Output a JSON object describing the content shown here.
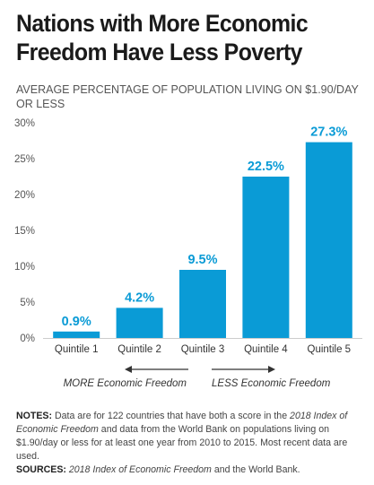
{
  "title": "Nations with More Economic Freedom Have Less Poverty",
  "chart_data": {
    "type": "bar",
    "title": "Nations with More Economic Freedom Have Less Poverty",
    "subtitle": "AVERAGE PERCENTAGE OF POPULATION LIVING ON $1.90/DAY OR LESS",
    "categories": [
      "Quintile 1",
      "Quintile 2",
      "Quintile 3",
      "Quintile 4",
      "Quintile 5"
    ],
    "values": [
      0.9,
      4.2,
      9.5,
      22.5,
      27.3
    ],
    "value_labels": [
      "0.9%",
      "4.2%",
      "9.5%",
      "22.5%",
      "27.3%"
    ],
    "ylim": [
      0,
      30
    ],
    "yticks": [
      0,
      5,
      10,
      15,
      20,
      25,
      30
    ],
    "ytick_labels": [
      "0%",
      "5%",
      "10%",
      "15%",
      "20%",
      "25%",
      "30%"
    ],
    "xlabel": "",
    "ylabel": "",
    "grid": false,
    "bar_color": "#0a9bd6",
    "label_color": "#0a9bd6",
    "annotations": {
      "left_arrow": "MORE Economic Freedom",
      "right_arrow": "LESS Economic Freedom"
    }
  },
  "notes": {
    "notes_label": "NOTES:",
    "notes_text_1": " Data are for 122 countries that have both a score in the ",
    "notes_italic": "2018 Index of Economic Freedom",
    "notes_text_2": " and data from the World Bank on populations living on $1.90/day or less for at least one year from 2010 to 2015. Most recent data are used.",
    "sources_label": "SOURCES:",
    "sources_italic": "2018 Index of Economic Freedom",
    "sources_text": " and the World Bank."
  }
}
